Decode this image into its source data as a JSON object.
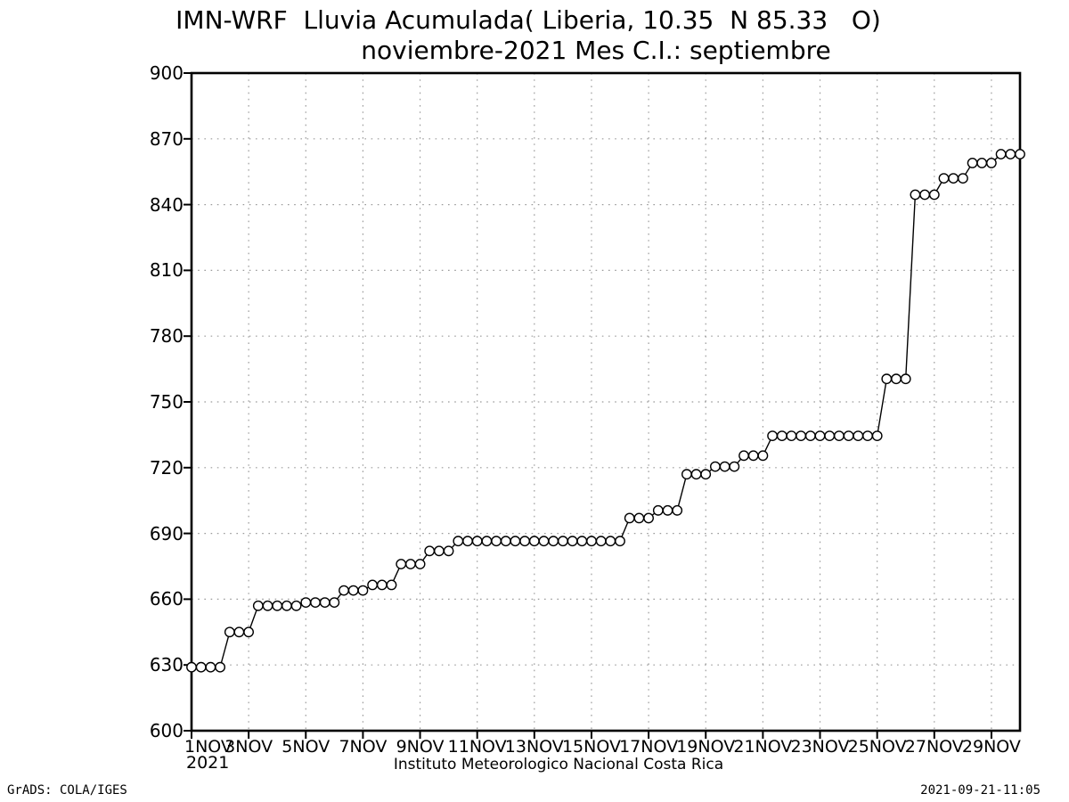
{
  "title": {
    "line1": "IMN-WRF  Lluvia Acumulada( Liberia, 10.35  N 85.33   O)",
    "line2": "noviembre-2021 Mes C.I.: septiembre"
  },
  "footer": {
    "center": "Instituto Meteorologico Nacional Costa Rica",
    "left": "GrADS: COLA/IGES",
    "right": "2021-09-21-11:05"
  },
  "chart_data": {
    "type": "scatter",
    "title": "IMN-WRF  Lluvia Acumulada( Liberia, 10.35  N 85.33   O)",
    "subtitle": "noviembre-2021 Mes C.I.: septiembre",
    "series_name": "Lluvia Acumulada",
    "grid": true,
    "marker": "open-circle",
    "line_color": "#000000",
    "grid_color": "#9b9b9b",
    "ylim": [
      600,
      900
    ],
    "y_tick_step": 30,
    "y_ticks": [
      600,
      630,
      660,
      690,
      720,
      750,
      780,
      810,
      840,
      870,
      900
    ],
    "xlim_days": [
      1,
      30
    ],
    "x_ticks": [
      {
        "day": 1,
        "label": "1NOV",
        "sublabel": "2021"
      },
      {
        "day": 3,
        "label": "3NOV"
      },
      {
        "day": 5,
        "label": "5NOV"
      },
      {
        "day": 7,
        "label": "7NOV"
      },
      {
        "day": 9,
        "label": "9NOV"
      },
      {
        "day": 11,
        "label": "11NOV"
      },
      {
        "day": 13,
        "label": "13NOV"
      },
      {
        "day": 15,
        "label": "15NOV"
      },
      {
        "day": 17,
        "label": "17NOV"
      },
      {
        "day": 19,
        "label": "19NOV"
      },
      {
        "day": 21,
        "label": "21NOV"
      },
      {
        "day": 23,
        "label": "23NOV"
      },
      {
        "day": 25,
        "label": "25NOV"
      },
      {
        "day": 27,
        "label": "27NOV"
      },
      {
        "day": 29,
        "label": "29NOV"
      }
    ],
    "sample_interval_days": 0.33333,
    "steps_note": "piecewise-constant accumulated rainfall: [start_day_of_november, value]",
    "steps": [
      [
        1.0,
        629.0
      ],
      [
        2.333,
        645.0
      ],
      [
        3.333,
        657.0
      ],
      [
        4.667,
        658.5
      ],
      [
        6.333,
        664.0
      ],
      [
        7.333,
        666.5
      ],
      [
        8.333,
        676.0
      ],
      [
        9.333,
        682.0
      ],
      [
        10.333,
        686.5
      ],
      [
        16.333,
        697.0
      ],
      [
        17.333,
        700.5
      ],
      [
        18.333,
        717.0
      ],
      [
        19.333,
        720.5
      ],
      [
        20.333,
        725.5
      ],
      [
        21.333,
        734.5
      ],
      [
        25.333,
        760.5
      ],
      [
        26.333,
        844.5
      ],
      [
        27.333,
        852.0
      ],
      [
        28.333,
        859.0
      ],
      [
        29.333,
        863.0
      ]
    ]
  }
}
